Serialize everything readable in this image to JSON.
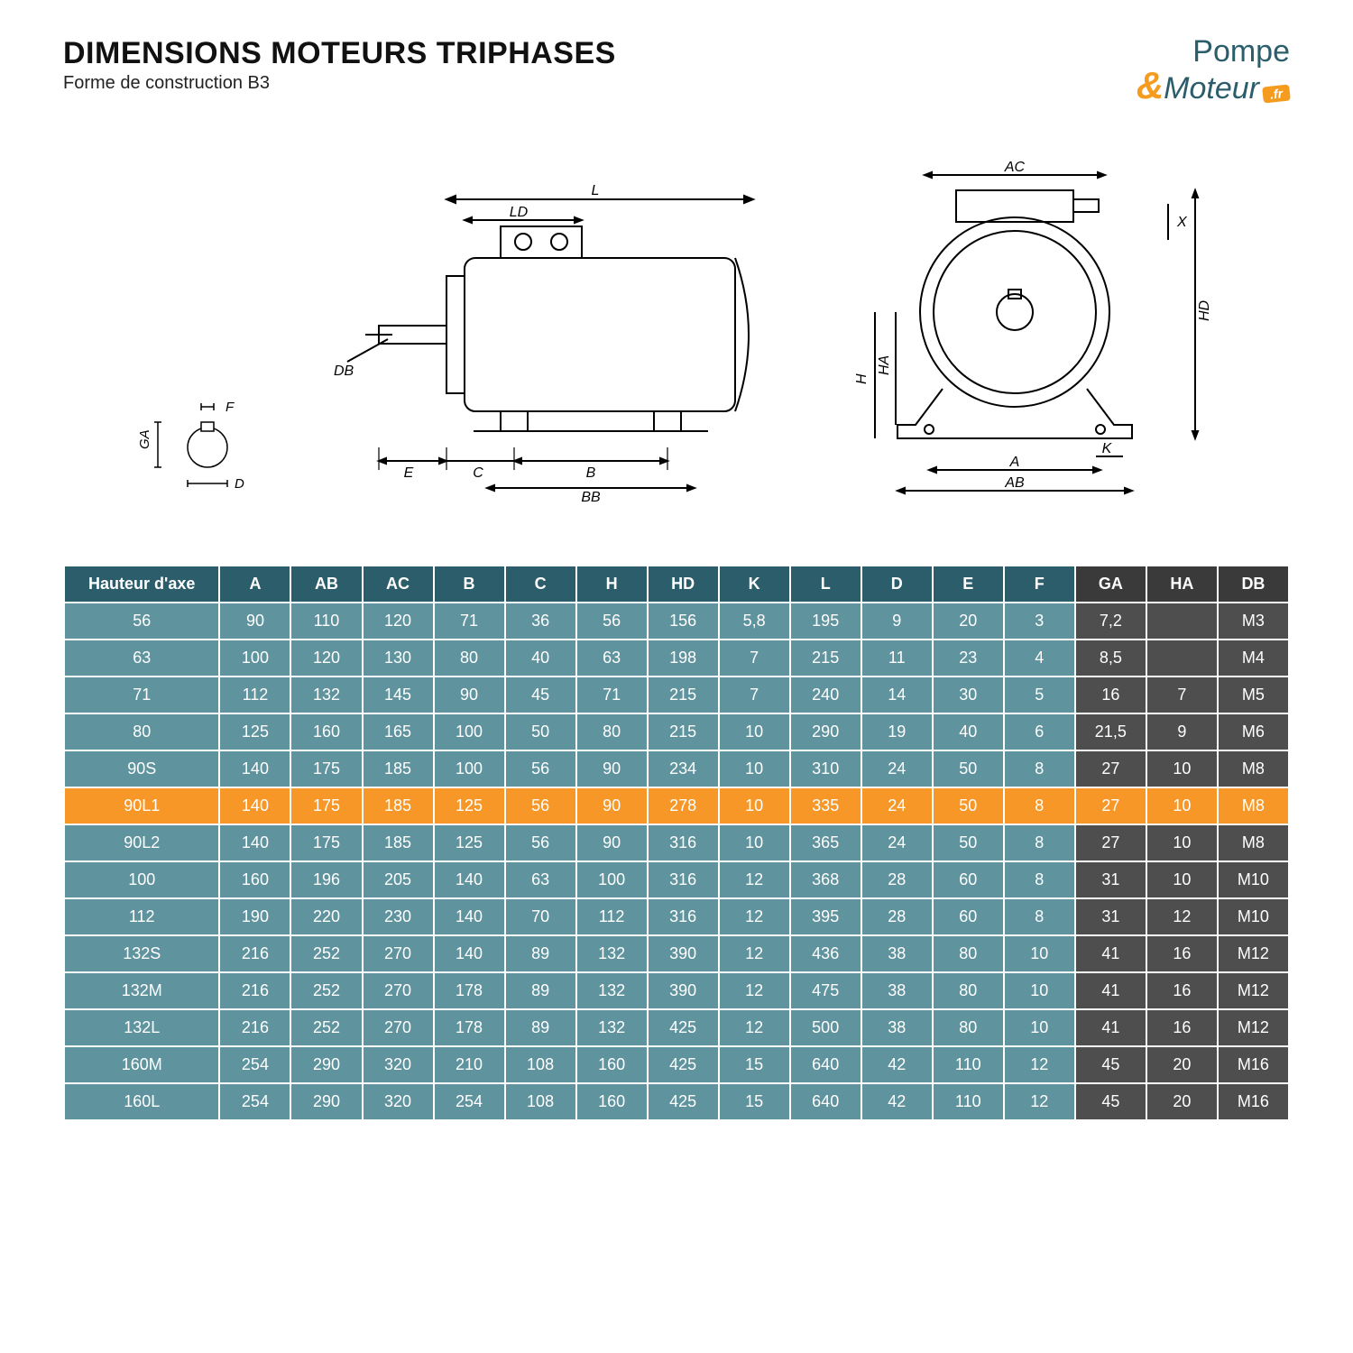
{
  "header": {
    "title": "DIMENSIONS MOTEURS TRIPHASES",
    "subtitle": "Forme de construction B3",
    "logo_line1": "Pompe",
    "logo_amp": "&",
    "logo_line2": "Moteur",
    "logo_badge": ".fr"
  },
  "diagram_labels": {
    "shaft": {
      "GA": "GA",
      "F": "F",
      "D": "D"
    },
    "side": {
      "L": "L",
      "LD": "LD",
      "DB": "DB",
      "E": "E",
      "C": "C",
      "B": "B",
      "BB": "BB"
    },
    "front": {
      "AC": "AC",
      "X": "X",
      "HD": "HD",
      "H": "H",
      "HA": "HA",
      "K": "K",
      "A": "A",
      "AB": "AB"
    }
  },
  "table": {
    "columns": [
      "Hauteur d'axe",
      "A",
      "AB",
      "AC",
      "B",
      "C",
      "H",
      "HD",
      "K",
      "L",
      "D",
      "E",
      "F",
      "GA",
      "HA",
      "DB"
    ],
    "col_groups": {
      "teal_end": 13
    },
    "header_colors": {
      "teal": "#2c5d6b",
      "dark": "#3a3a3a"
    },
    "row_colors": {
      "teal": "#5f939e",
      "dark": "#4e4e4e"
    },
    "highlight_color": "#f79727",
    "highlight_row_index": 5,
    "rows": [
      [
        "56",
        "90",
        "110",
        "120",
        "71",
        "36",
        "56",
        "156",
        "5,8",
        "195",
        "9",
        "20",
        "3",
        "7,2",
        "",
        "M3"
      ],
      [
        "63",
        "100",
        "120",
        "130",
        "80",
        "40",
        "63",
        "198",
        "7",
        "215",
        "11",
        "23",
        "4",
        "8,5",
        "",
        "M4"
      ],
      [
        "71",
        "112",
        "132",
        "145",
        "90",
        "45",
        "71",
        "215",
        "7",
        "240",
        "14",
        "30",
        "5",
        "16",
        "7",
        "M5"
      ],
      [
        "80",
        "125",
        "160",
        "165",
        "100",
        "50",
        "80",
        "215",
        "10",
        "290",
        "19",
        "40",
        "6",
        "21,5",
        "9",
        "M6"
      ],
      [
        "90S",
        "140",
        "175",
        "185",
        "100",
        "56",
        "90",
        "234",
        "10",
        "310",
        "24",
        "50",
        "8",
        "27",
        "10",
        "M8"
      ],
      [
        "90L1",
        "140",
        "175",
        "185",
        "125",
        "56",
        "90",
        "278",
        "10",
        "335",
        "24",
        "50",
        "8",
        "27",
        "10",
        "M8"
      ],
      [
        "90L2",
        "140",
        "175",
        "185",
        "125",
        "56",
        "90",
        "316",
        "10",
        "365",
        "24",
        "50",
        "8",
        "27",
        "10",
        "M8"
      ],
      [
        "100",
        "160",
        "196",
        "205",
        "140",
        "63",
        "100",
        "316",
        "12",
        "368",
        "28",
        "60",
        "8",
        "31",
        "10",
        "M10"
      ],
      [
        "112",
        "190",
        "220",
        "230",
        "140",
        "70",
        "112",
        "316",
        "12",
        "395",
        "28",
        "60",
        "8",
        "31",
        "12",
        "M10"
      ],
      [
        "132S",
        "216",
        "252",
        "270",
        "140",
        "89",
        "132",
        "390",
        "12",
        "436",
        "38",
        "80",
        "10",
        "41",
        "16",
        "M12"
      ],
      [
        "132M",
        "216",
        "252",
        "270",
        "178",
        "89",
        "132",
        "390",
        "12",
        "475",
        "38",
        "80",
        "10",
        "41",
        "16",
        "M12"
      ],
      [
        "132L",
        "216",
        "252",
        "270",
        "178",
        "89",
        "132",
        "425",
        "12",
        "500",
        "38",
        "80",
        "10",
        "41",
        "16",
        "M12"
      ],
      [
        "160M",
        "254",
        "290",
        "320",
        "210",
        "108",
        "160",
        "425",
        "15",
        "640",
        "42",
        "110",
        "12",
        "45",
        "20",
        "M16"
      ],
      [
        "160L",
        "254",
        "290",
        "320",
        "254",
        "108",
        "160",
        "425",
        "15",
        "640",
        "42",
        "110",
        "12",
        "45",
        "20",
        "M16"
      ]
    ]
  }
}
